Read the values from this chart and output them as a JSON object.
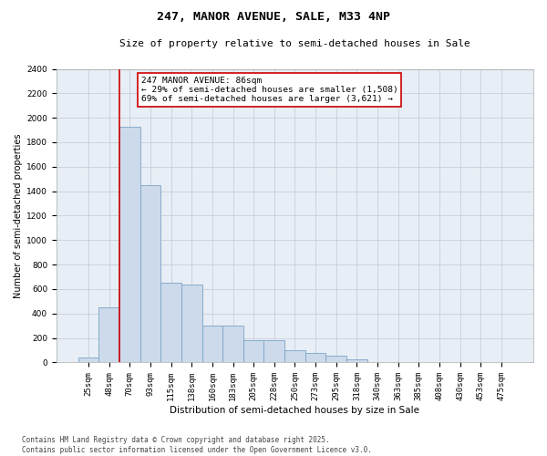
{
  "title": "247, MANOR AVENUE, SALE, M33 4NP",
  "subtitle": "Size of property relative to semi-detached houses in Sale",
  "xlabel": "Distribution of semi-detached houses by size in Sale",
  "ylabel": "Number of semi-detached properties",
  "footer_line1": "Contains HM Land Registry data © Crown copyright and database right 2025.",
  "footer_line2": "Contains public sector information licensed under the Open Government Licence v3.0.",
  "annotation_title": "247 MANOR AVENUE: 86sqm",
  "annotation_line1": "← 29% of semi-detached houses are smaller (1,508)",
  "annotation_line2": "69% of semi-detached houses are larger (3,621) →",
  "categories": [
    "25sqm",
    "48sqm",
    "70sqm",
    "93sqm",
    "115sqm",
    "138sqm",
    "160sqm",
    "183sqm",
    "205sqm",
    "228sqm",
    "250sqm",
    "273sqm",
    "295sqm",
    "318sqm",
    "340sqm",
    "363sqm",
    "385sqm",
    "408sqm",
    "430sqm",
    "453sqm",
    "475sqm"
  ],
  "values": [
    40,
    450,
    1930,
    1450,
    650,
    640,
    305,
    300,
    185,
    185,
    100,
    75,
    55,
    28,
    5,
    0,
    0,
    0,
    0,
    0,
    0
  ],
  "bar_color": "#ccdaeb",
  "bar_edge_color": "#7ba3c8",
  "vline_color": "#cc0000",
  "vline_x_index": 2,
  "annotation_box_color": "#cc0000",
  "background_color": "#ffffff",
  "plot_bg_color": "#e8eef5",
  "grid_color": "#c0c8d8",
  "ylim": [
    0,
    2400
  ],
  "yticks": [
    0,
    200,
    400,
    600,
    800,
    1000,
    1200,
    1400,
    1600,
    1800,
    2000,
    2200,
    2400
  ],
  "title_fontsize": 9.5,
  "subtitle_fontsize": 8.0,
  "tick_fontsize": 6.5,
  "ylabel_fontsize": 7.0,
  "xlabel_fontsize": 7.5,
  "footer_fontsize": 5.5,
  "annotation_fontsize": 6.8
}
